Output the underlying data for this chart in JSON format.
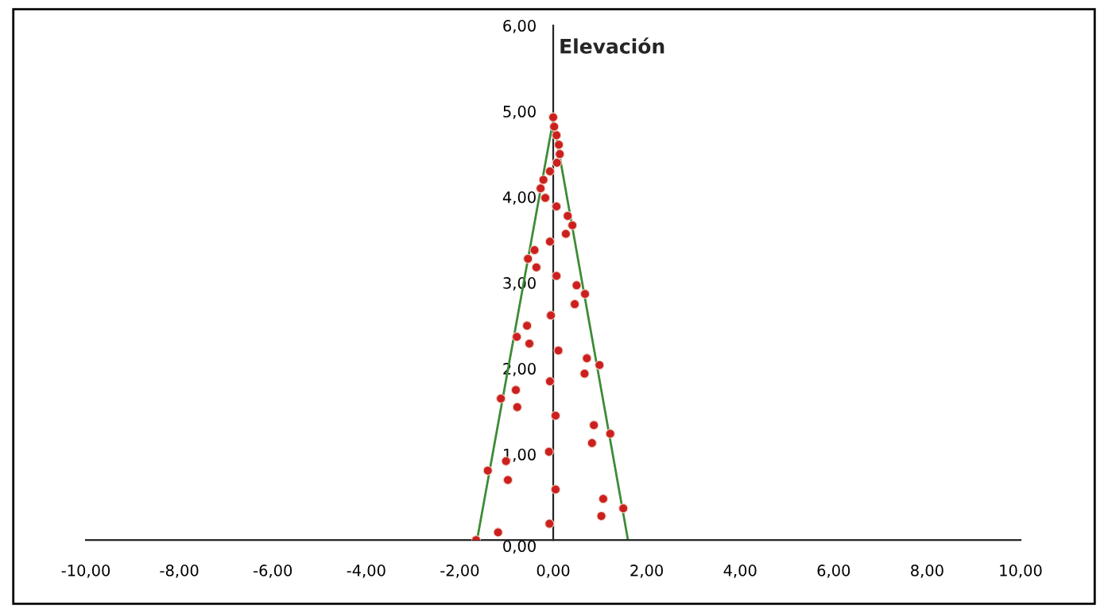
{
  "chart_data": {
    "type": "scatter",
    "ylabel": "Elevación",
    "xlim": [
      -10,
      10
    ],
    "ylim": [
      0,
      6
    ],
    "xticks": [
      {
        "value": -10,
        "label": "-10,00"
      },
      {
        "value": -8,
        "label": "-8,00"
      },
      {
        "value": -6,
        "label": "-6,00"
      },
      {
        "value": -4,
        "label": "-4,00"
      },
      {
        "value": -2,
        "label": "-2,00"
      },
      {
        "value": 0,
        "label": "0,00"
      },
      {
        "value": 2,
        "label": "2,00"
      },
      {
        "value": 4,
        "label": "4,00"
      },
      {
        "value": 6,
        "label": "6,00"
      },
      {
        "value": 8,
        "label": "8,00"
      },
      {
        "value": 10,
        "label": "10,00"
      }
    ],
    "yticks": [
      {
        "value": 0,
        "label": "0,00"
      },
      {
        "value": 1,
        "label": "1,00"
      },
      {
        "value": 2,
        "label": "2,00"
      },
      {
        "value": 3,
        "label": "3,00"
      },
      {
        "value": 4,
        "label": "4,00"
      },
      {
        "value": 5,
        "label": "5,00"
      },
      {
        "value": 6,
        "label": "6,00"
      }
    ],
    "grid": false,
    "series": [
      {
        "type": "line",
        "marker": "none",
        "color": "#3d8b37",
        "x": [
          -1.63,
          0,
          1.6
        ],
        "values": [
          0,
          4.9,
          0
        ]
      },
      {
        "marker": "circle",
        "color": "#cc2020",
        "x": [
          -1.65,
          -1.18,
          -0.08,
          1.03,
          1.5,
          1.07,
          0.05,
          -0.97,
          -1.4,
          -1.01,
          -0.09,
          0.83,
          1.22,
          0.87,
          0.05,
          -0.77,
          -1.12,
          -0.8,
          -0.07,
          0.67,
          0.99,
          0.72,
          0.11,
          -0.51,
          -0.78,
          -0.56,
          -0.05,
          0.46,
          0.68,
          0.5,
          0.07,
          -0.36,
          -0.54,
          -0.4,
          -0.07,
          0.27,
          0.41,
          0.31,
          0.07,
          -0.17,
          -0.27,
          -0.21,
          -0.07,
          0.08,
          0.14,
          0.12,
          0.07,
          0.02,
          0.0
        ],
        "values": [
          0.0,
          0.09,
          0.19,
          0.28,
          0.37,
          0.48,
          0.59,
          0.7,
          0.81,
          0.92,
          1.03,
          1.13,
          1.24,
          1.34,
          1.45,
          1.55,
          1.65,
          1.75,
          1.85,
          1.94,
          2.04,
          2.12,
          2.21,
          2.29,
          2.37,
          2.5,
          2.62,
          2.75,
          2.87,
          2.97,
          3.08,
          3.18,
          3.28,
          3.38,
          3.48,
          3.57,
          3.67,
          3.78,
          3.89,
          3.99,
          4.1,
          4.2,
          4.3,
          4.4,
          4.5,
          4.61,
          4.72,
          4.82,
          4.93
        ]
      }
    ]
  }
}
